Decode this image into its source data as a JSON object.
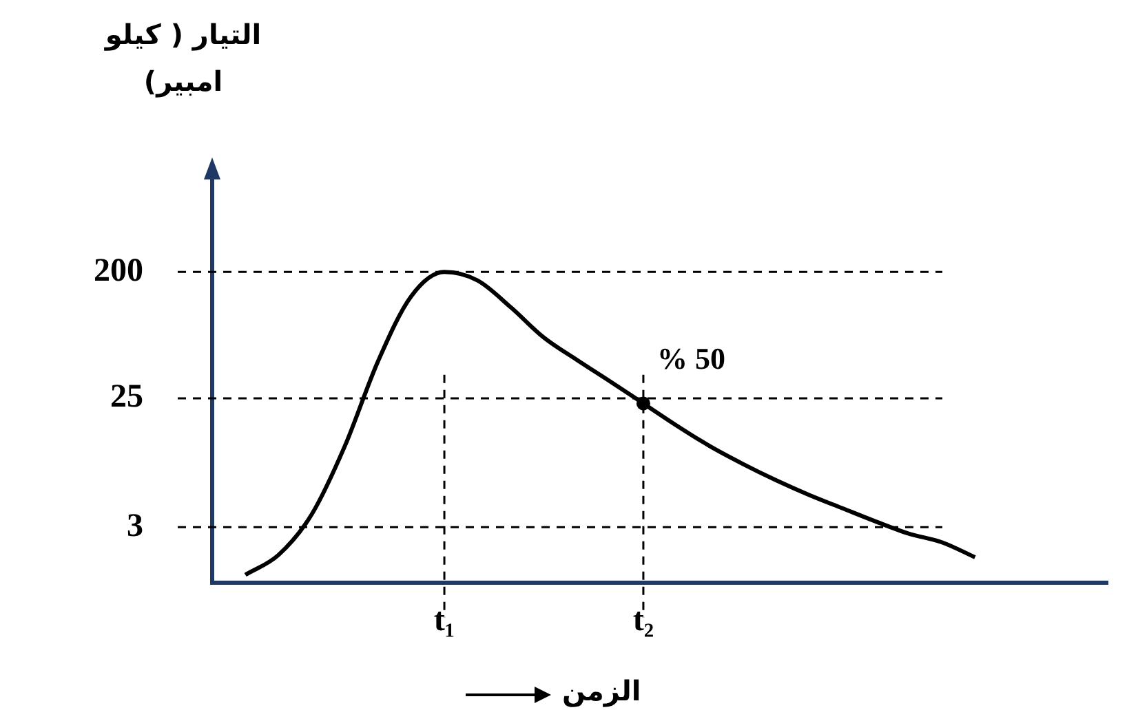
{
  "chart_data": {
    "type": "line",
    "xlabel": "الزمن",
    "ylabel": "التيار ( كيلو امبير)",
    "log": "y",
    "categories": [
      null,
      null,
      null,
      null,
      null,
      null,
      null,
      "t₁",
      null,
      null,
      null,
      null,
      null,
      "t₂",
      null,
      null,
      null,
      null,
      null,
      null,
      null,
      null,
      null,
      null,
      null,
      null,
      null,
      null
    ],
    "series": [
      {
        "color": "#000000",
        "values": [
          null,
          1.37,
          1.9,
          3.7,
          11.4,
          46,
          134,
          200,
          174,
          112,
          68,
          47,
          33,
          23,
          16,
          11.4,
          8.5,
          6.5,
          5.1,
          4.1,
          3.3,
          2.7,
          2.34,
          1.83,
          null,
          null,
          null,
          null
        ]
      }
    ],
    "ylim": [
      1.2,
      1100
    ],
    "yticks": [
      3,
      25,
      200
    ],
    "ref_lines": [
      {
        "axis": "y",
        "value": 200,
        "color": "#000000",
        "line_style": "dashed"
      },
      {
        "axis": "y",
        "value": 25,
        "color": "#000000",
        "line_style": "dashed"
      },
      {
        "axis": "y",
        "value": 3,
        "color": "#000000",
        "line_style": "dashed"
      },
      {
        "axis": "x",
        "value": "t₁",
        "color": "#000000",
        "line_style": "dashed"
      },
      {
        "axis": "x",
        "value": "t₂",
        "color": "#000000",
        "line_style": "dashed"
      }
    ],
    "annotations": [
      {
        "text": "% 50",
        "x": "t₂",
        "y": 23
      }
    ],
    "grid": false,
    "legend": false,
    "marker": "none",
    "line_style": "solid"
  }
}
